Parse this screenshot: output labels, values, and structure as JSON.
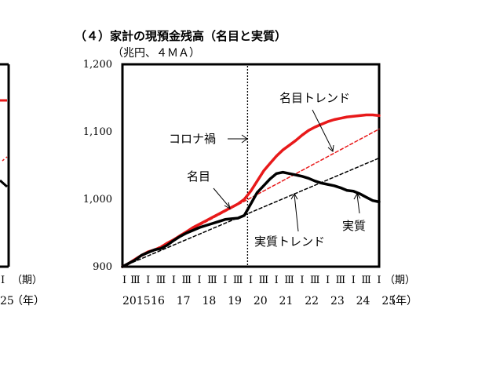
{
  "chart_data": {
    "type": "line",
    "title": "（４）家計の現預金残高（名目と実質）",
    "unit_label": "（兆円、４ＭＡ）",
    "ylim": [
      900,
      1200
    ],
    "yticks": [
      "900",
      "1,000",
      "1,100",
      "1,200"
    ],
    "ytick_values": [
      900,
      1000,
      1100,
      1200
    ],
    "x_quarters": [
      "Ⅰ",
      "Ⅲ",
      "Ⅰ",
      "Ⅲ",
      "Ⅰ",
      "Ⅲ",
      "Ⅰ",
      "Ⅲ",
      "Ⅰ",
      "Ⅲ",
      "Ⅰ",
      "Ⅲ",
      "Ⅰ",
      "Ⅲ",
      "Ⅰ",
      "Ⅲ",
      "Ⅰ",
      "Ⅲ",
      "Ⅰ",
      "Ⅲ",
      "Ⅰ"
    ],
    "x_years": [
      "2015",
      "16",
      "17",
      "18",
      "19",
      "20",
      "21",
      "22",
      "23",
      "24",
      "25"
    ],
    "x_period_label": "（期）",
    "x_year_label": "（年）",
    "grid": false,
    "x": [
      "2015Q1",
      "2015Q2",
      "2015Q3",
      "2015Q4",
      "2016Q1",
      "2016Q2",
      "2016Q3",
      "2016Q4",
      "2017Q1",
      "2017Q2",
      "2017Q3",
      "2017Q4",
      "2018Q1",
      "2018Q2",
      "2018Q3",
      "2018Q4",
      "2019Q1",
      "2019Q2",
      "2019Q3",
      "2019Q4",
      "2020Q1",
      "2020Q2",
      "2020Q3",
      "2020Q4",
      "2021Q1",
      "2021Q2",
      "2021Q3",
      "2021Q4",
      "2022Q1",
      "2022Q2",
      "2022Q3",
      "2022Q4",
      "2023Q1",
      "2023Q2",
      "2023Q3",
      "2023Q4",
      "2024Q1",
      "2024Q2",
      "2024Q3",
      "2024Q4",
      "2025Q1"
    ],
    "series": [
      {
        "name": "名目",
        "color": "#e8191a",
        "style": "solid",
        "values": [
          900,
          905,
          911,
          917,
          922,
          925,
          929,
          935,
          940,
          946,
          952,
          958,
          963,
          968,
          973,
          978,
          983,
          988,
          993,
          1000,
          1012,
          1027,
          1042,
          1053,
          1064,
          1073,
          1080,
          1087,
          1095,
          1102,
          1107,
          1111,
          1115,
          1118,
          1120,
          1122,
          1123,
          1124,
          1125,
          1125,
          1124
        ]
      },
      {
        "name": "実質",
        "color": "#000000",
        "style": "solid",
        "values": [
          900,
          905,
          910,
          917,
          921,
          925,
          927,
          932,
          939,
          945,
          950,
          954,
          958,
          961,
          964,
          967,
          970,
          971,
          972,
          976,
          993,
          1010,
          1020,
          1030,
          1038,
          1040,
          1038,
          1036,
          1034,
          1031,
          1027,
          1024,
          1022,
          1020,
          1017,
          1013,
          1012,
          1008,
          1003,
          998,
          996
        ]
      },
      {
        "name": "名目トレンド",
        "color": "#e8191a",
        "style": "dashed",
        "start": [
          0,
          900
        ],
        "end": [
          40,
          1104
        ]
      },
      {
        "name": "実質トレンド",
        "color": "#000000",
        "style": "dashed",
        "start": [
          0,
          900
        ],
        "end": [
          40,
          1061
        ]
      }
    ],
    "annotations": [
      {
        "text": "コロナ禍",
        "at_index": 19.5
      },
      {
        "text": "名目トレンド"
      },
      {
        "text": "名目"
      },
      {
        "text": "実質"
      },
      {
        "text": "実質トレンド"
      }
    ],
    "vline_index": 19.5,
    "left_partial": {
      "quarter_label": "Ⅰ",
      "year_label": "25",
      "period_label": "（期）",
      "year_axis_label": "（年）"
    }
  }
}
